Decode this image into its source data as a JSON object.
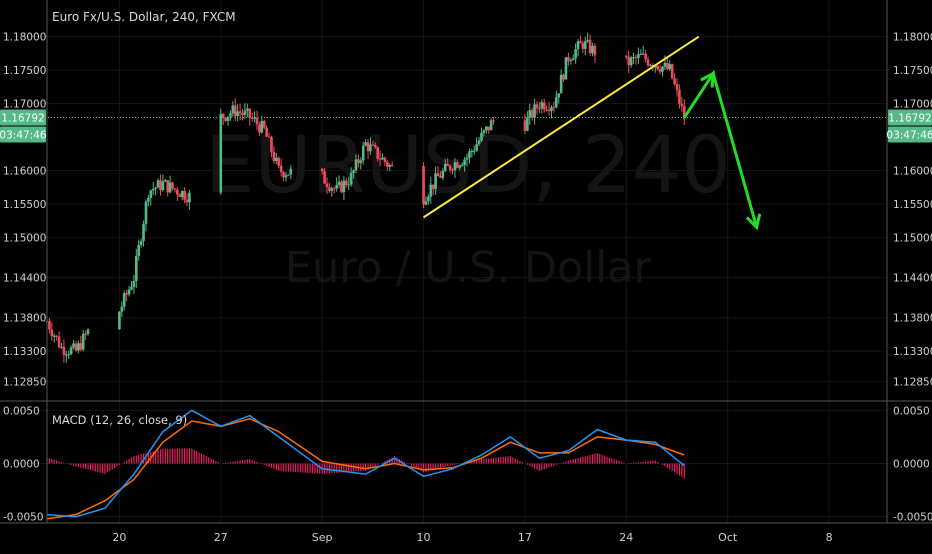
{
  "header": {
    "symbol_title": "Euro Fx/U.S. Dollar, 240, FXCM",
    "watermark_symbol": "EURUSD, 240",
    "watermark_name": "Euro / U.S. Dollar"
  },
  "price_axis": {
    "ticks": [
      "1.18000",
      "1.17500",
      "1.17000",
      "1.16000",
      "1.15500",
      "1.15000",
      "1.14400",
      "1.13800",
      "1.13300",
      "1.12850"
    ],
    "tick_values": [
      1.18,
      1.175,
      1.17,
      1.16,
      1.155,
      1.15,
      1.144,
      1.138,
      1.133,
      1.1285
    ],
    "current_price": "1.16792",
    "countdown": "03:47:46"
  },
  "macd_axis": {
    "ticks": [
      "0.0050",
      "0.0000",
      "-0.0050"
    ],
    "tick_values": [
      0.005,
      0.0,
      -0.005
    ]
  },
  "macd": {
    "label": "MACD (12, 26, close, 9)"
  },
  "time_axis": {
    "labels": [
      "20",
      "27",
      "Sep",
      "10",
      "17",
      "24",
      "Oct",
      "8"
    ]
  },
  "colors": {
    "background": "#000000",
    "up_candle": "#53b987",
    "down_candle": "#eb4d5c",
    "trendline": "#ffeb3b",
    "projection_arrow": "#22dd22",
    "macd_line": "#2196f3",
    "signal_line": "#ff6d00",
    "histogram": "#e91e63",
    "current_price_line": "#53b987"
  },
  "chart_data": {
    "type": "candlestick",
    "title": "Euro Fx/U.S. Dollar, 240, FXCM",
    "ylim": [
      1.126,
      1.1825
    ],
    "x_range": [
      "2018-08-15",
      "2018-10-12"
    ],
    "price_path": [
      [
        "2018-08-15",
        1.1375
      ],
      [
        "2018-08-16",
        1.1335
      ],
      [
        "2018-08-17",
        1.133
      ],
      [
        "2018-08-18",
        1.1365
      ],
      [
        "2018-08-19",
        1.139
      ],
      [
        "2018-08-20",
        1.139
      ],
      [
        "2018-08-21",
        1.144
      ],
      [
        "2018-08-22",
        1.157
      ],
      [
        "2018-08-23",
        1.158
      ],
      [
        "2018-08-24",
        1.157
      ],
      [
        "2018-08-25",
        1.156
      ],
      [
        "2018-08-26",
        1.162
      ],
      [
        "2018-08-27",
        1.168
      ],
      [
        "2018-08-28",
        1.169
      ],
      [
        "2018-08-29",
        1.168
      ],
      [
        "2018-08-30",
        1.166
      ],
      [
        "2018-08-31",
        1.16
      ],
      [
        "2018-09-03",
        1.159
      ],
      [
        "2018-09-04",
        1.157
      ],
      [
        "2018-09-05",
        1.159
      ],
      [
        "2018-09-06",
        1.164
      ],
      [
        "2018-09-07",
        1.162
      ],
      [
        "2018-09-10",
        1.156
      ],
      [
        "2018-09-11",
        1.159
      ],
      [
        "2018-09-12",
        1.161
      ],
      [
        "2018-09-13",
        1.162
      ],
      [
        "2018-09-14",
        1.165
      ],
      [
        "2018-09-15",
        1.168
      ],
      [
        "2018-09-16",
        1.164
      ],
      [
        "2018-09-17",
        1.167
      ],
      [
        "2018-09-18",
        1.17
      ],
      [
        "2018-09-19",
        1.17
      ],
      [
        "2018-09-20",
        1.177
      ],
      [
        "2018-09-21",
        1.179
      ],
      [
        "2018-09-23",
        1.176
      ],
      [
        "2018-09-24",
        1.176
      ],
      [
        "2018-09-25",
        1.177
      ],
      [
        "2018-09-26",
        1.176
      ],
      [
        "2018-09-27",
        1.175
      ],
      [
        "2018-09-28",
        1.1679
      ]
    ],
    "current_price": 1.16792,
    "trendline": [
      [
        "2018-09-10",
        1.153
      ],
      [
        "2018-09-29",
        1.18
      ]
    ],
    "projection_arrow": [
      [
        "2018-09-28",
        1.1679
      ],
      [
        "2018-09-30",
        1.1745
      ],
      [
        "2018-10-03",
        1.1515
      ]
    ],
    "macd_ylim": [
      -0.0055,
      0.0055
    ],
    "macd": {
      "label": "MACD (12, 26, close, 9)",
      "macd_line": [
        [
          "2018-08-15",
          -0.0048
        ],
        [
          "2018-08-17",
          -0.005
        ],
        [
          "2018-08-19",
          -0.0042
        ],
        [
          "2018-08-21",
          -0.001
        ],
        [
          "2018-08-23",
          0.003
        ],
        [
          "2018-08-25",
          0.005
        ],
        [
          "2018-08-27",
          0.0035
        ],
        [
          "2018-08-29",
          0.0045
        ],
        [
          "2018-08-31",
          0.0025
        ],
        [
          "2018-09-03",
          -0.0005
        ],
        [
          "2018-09-06",
          -0.001
        ],
        [
          "2018-09-08",
          0.0005
        ],
        [
          "2018-09-10",
          -0.0012
        ],
        [
          "2018-09-12",
          -0.0005
        ],
        [
          "2018-09-14",
          0.0008
        ],
        [
          "2018-09-16",
          0.0025
        ],
        [
          "2018-09-18",
          0.0005
        ],
        [
          "2018-09-20",
          0.0012
        ],
        [
          "2018-09-22",
          0.0032
        ],
        [
          "2018-09-24",
          0.0022
        ],
        [
          "2018-09-26",
          0.002
        ],
        [
          "2018-09-28",
          -0.0002
        ]
      ],
      "signal_line": [
        [
          "2018-08-15",
          -0.0052
        ],
        [
          "2018-08-17",
          -0.0048
        ],
        [
          "2018-08-19",
          -0.0035
        ],
        [
          "2018-08-21",
          -0.0015
        ],
        [
          "2018-08-23",
          0.002
        ],
        [
          "2018-08-25",
          0.004
        ],
        [
          "2018-08-27",
          0.0035
        ],
        [
          "2018-08-29",
          0.0042
        ],
        [
          "2018-08-31",
          0.003
        ],
        [
          "2018-09-03",
          0.0002
        ],
        [
          "2018-09-06",
          -0.0005
        ],
        [
          "2018-09-08",
          0.0
        ],
        [
          "2018-09-10",
          -0.0006
        ],
        [
          "2018-09-12",
          -0.0004
        ],
        [
          "2018-09-14",
          0.0005
        ],
        [
          "2018-09-16",
          0.002
        ],
        [
          "2018-09-18",
          0.001
        ],
        [
          "2018-09-20",
          0.001
        ],
        [
          "2018-09-22",
          0.0025
        ],
        [
          "2018-09-24",
          0.0022
        ],
        [
          "2018-09-26",
          0.0018
        ],
        [
          "2018-09-28",
          0.0008
        ]
      ]
    }
  }
}
